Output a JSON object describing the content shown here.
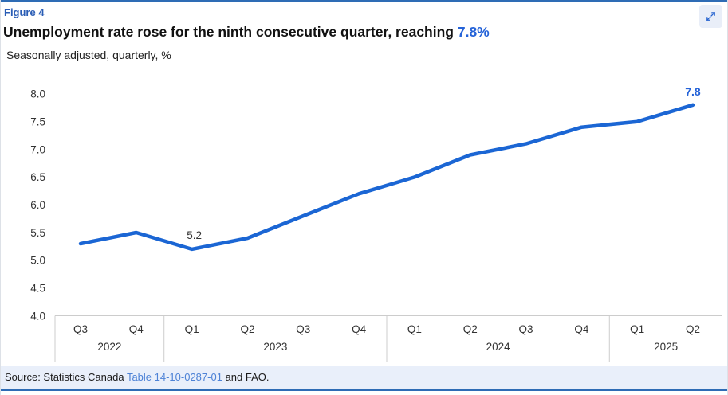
{
  "header": {
    "figure_label": "Figure 4",
    "title_prefix": "Unemployment rate rose for the ninth consecutive quarter, reaching ",
    "title_highlight": "7.8%",
    "subtitle": "Seasonally adjusted, quarterly, %",
    "expand_icon": "expand-arrows-icon"
  },
  "chart_data": {
    "type": "line",
    "title": "Unemployment rate rose for the ninth consecutive quarter, reaching 7.8%",
    "subtitle": "Seasonally adjusted, quarterly, %",
    "ylabel": "%",
    "ylim": [
      4.0,
      8.0
    ],
    "yticks": [
      "8.0",
      "7.5",
      "7.0",
      "6.5",
      "6.0",
      "5.5",
      "5.0",
      "4.5",
      "4.0"
    ],
    "grid": false,
    "legend": "none",
    "quarters": [
      "Q3",
      "Q4",
      "Q1",
      "Q2",
      "Q3",
      "Q4",
      "Q1",
      "Q2",
      "Q3",
      "Q4",
      "Q1",
      "Q2"
    ],
    "year_groups": [
      {
        "year": "2022",
        "count": 2
      },
      {
        "year": "2023",
        "count": 4
      },
      {
        "year": "2024",
        "count": 4
      },
      {
        "year": "2025",
        "count": 2
      }
    ],
    "series": [
      {
        "name": "Unemployment rate",
        "values": [
          5.3,
          5.5,
          5.2,
          5.4,
          5.8,
          6.2,
          6.5,
          6.9,
          7.1,
          7.4,
          7.5,
          7.8
        ]
      }
    ],
    "annotations": [
      {
        "pointIndex": 2,
        "text": "5.2",
        "emphasis": false
      },
      {
        "pointIndex": 11,
        "text": "7.8",
        "emphasis": true
      }
    ],
    "line_color": "#1b66d4"
  },
  "footer": {
    "source_prefix": "Source: Statistics Canada ",
    "source_link": "Table 14-10-0287-01",
    "source_suffix": " and FAO."
  },
  "colors": {
    "accent_blue": "#2563d8",
    "rule_blue": "#2e6cb5",
    "axis_text": "#333333",
    "axis_line": "#cccccc",
    "source_bg": "#e9effa",
    "link_blue": "#4d82d6"
  }
}
